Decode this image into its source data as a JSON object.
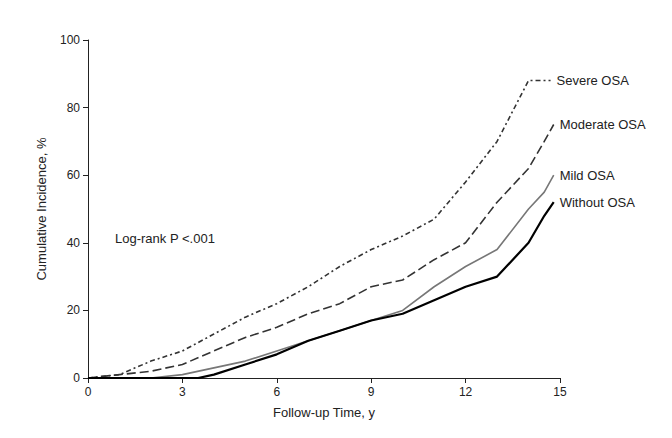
{
  "chart_data": {
    "type": "line",
    "x_label": "Follow-up Time, y",
    "y_label": "Cumulative Incidence, %",
    "annotation": "Log-rank P <.001",
    "xlim": [
      0,
      15
    ],
    "xticks": [
      0,
      3,
      6,
      9,
      12,
      15
    ],
    "ylim": [
      0,
      100
    ],
    "yticks": [
      0,
      20,
      40,
      60,
      80,
      100
    ],
    "grid": false,
    "marker": "none",
    "series": [
      {
        "name": "Severe OSA",
        "color": "#333333",
        "line_style": "dashdot",
        "x": [
          0,
          1,
          1.5,
          2,
          3,
          4,
          5,
          6,
          7,
          8,
          9,
          10,
          11,
          12,
          13,
          14,
          14.7
        ],
        "values": [
          0,
          1,
          3,
          5,
          8,
          13,
          18,
          22,
          27,
          33,
          38,
          42,
          47,
          58,
          70,
          88,
          88
        ]
      },
      {
        "name": "Moderate OSA",
        "color": "#333333",
        "line_style": "dashed",
        "x": [
          0,
          1,
          2,
          3,
          4,
          5,
          6,
          7,
          8,
          9,
          10,
          11,
          12,
          13,
          14,
          14.5,
          14.8
        ],
        "values": [
          0,
          1,
          2,
          4,
          8,
          12,
          15,
          19,
          22,
          27,
          29,
          35,
          40,
          52,
          62,
          70,
          75
        ]
      },
      {
        "name": "Mild OSA",
        "color": "#777777",
        "line_style": "solid",
        "x": [
          0,
          2,
          3,
          4,
          5,
          6,
          7,
          8,
          9,
          10,
          11,
          12,
          13,
          14,
          14.5,
          14.8
        ],
        "values": [
          0,
          0,
          1,
          3,
          5,
          8,
          11,
          14,
          17,
          20,
          27,
          33,
          38,
          50,
          55,
          60
        ]
      },
      {
        "name": "Without OSA",
        "color": "#000000",
        "line_style": "solid",
        "x": [
          0,
          3.5,
          4,
          5,
          6,
          7,
          8,
          9,
          10,
          11,
          12,
          13,
          14,
          14.5,
          14.8
        ],
        "values": [
          0,
          0,
          1,
          4,
          7,
          11,
          14,
          17,
          19,
          23,
          27,
          30,
          40,
          48,
          52
        ]
      }
    ]
  }
}
